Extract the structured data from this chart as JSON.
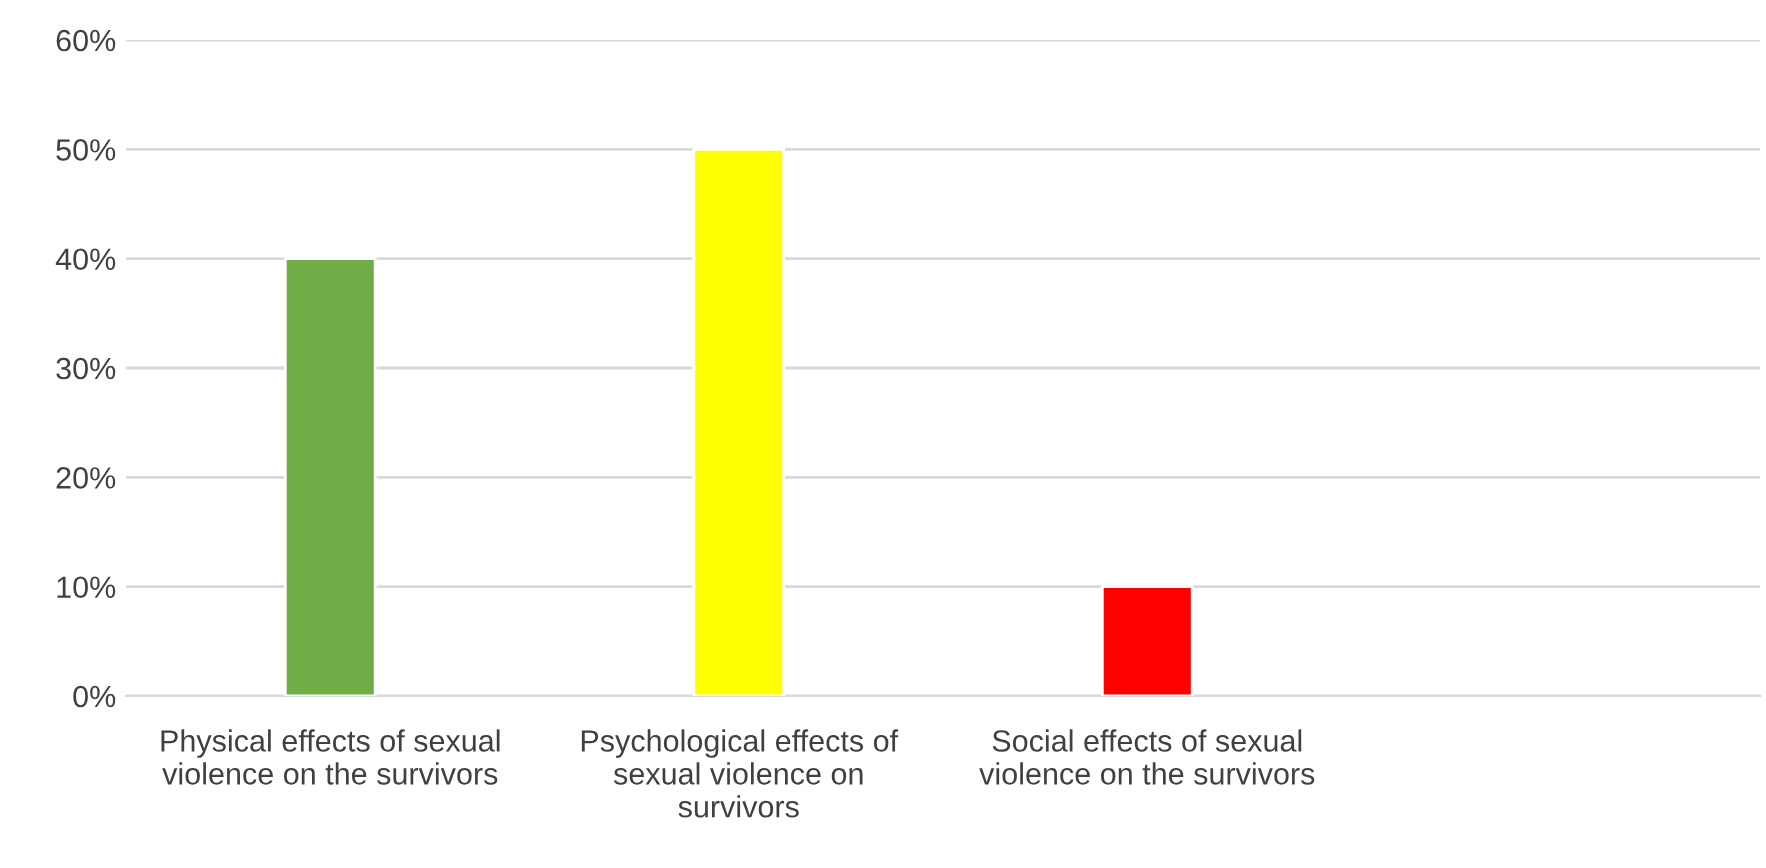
{
  "chart_data": {
    "type": "bar",
    "categories": [
      "Physical effects of sexual\nviolence on the survivors",
      "Psychological effects of\nsexual violence on\nsurvivors",
      "Social effects of sexual\nviolence on the survivors",
      null
    ],
    "values": [
      40,
      50,
      10,
      null
    ],
    "colors": [
      "#70ad47",
      "#ffff00",
      "#ff0000",
      null
    ],
    "ylim": [
      0,
      60
    ],
    "yticks": [
      {
        "value": 0,
        "label": "0%"
      },
      {
        "value": 10,
        "label": "10%"
      },
      {
        "value": 20,
        "label": "20%"
      },
      {
        "value": 30,
        "label": "30%"
      },
      {
        "value": 40,
        "label": "40%"
      },
      {
        "value": 50,
        "label": "50%"
      },
      {
        "value": 60,
        "label": "60%"
      }
    ],
    "grid": "y"
  }
}
